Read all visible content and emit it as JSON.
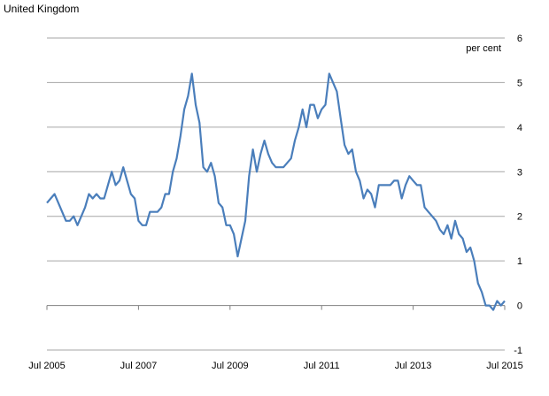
{
  "region_label": "United Kingdom",
  "chart_data": {
    "type": "line",
    "title": "",
    "xlabel": "",
    "ylabel": "",
    "unit_label": "per cent",
    "ylim": [
      -1,
      6
    ],
    "yticks": [
      "6",
      "5",
      "4",
      "3",
      "2",
      "1",
      "0",
      "-1"
    ],
    "xlim": [
      "2005-07",
      "2015-07"
    ],
    "xticks": [
      "Jul 2005",
      "Jul 2007",
      "Jul 2009",
      "Jul 2011",
      "Jul 2013",
      "Jul 2015"
    ],
    "grid": true,
    "legend": "none",
    "series": [
      {
        "color": "#4A7EBB",
        "x": [
          "2005-07",
          "2005-08",
          "2005-09",
          "2005-10",
          "2005-11",
          "2005-12",
          "2006-01",
          "2006-02",
          "2006-03",
          "2006-04",
          "2006-05",
          "2006-06",
          "2006-07",
          "2006-08",
          "2006-09",
          "2006-10",
          "2006-11",
          "2006-12",
          "2007-01",
          "2007-02",
          "2007-03",
          "2007-04",
          "2007-05",
          "2007-06",
          "2007-07",
          "2007-08",
          "2007-09",
          "2007-10",
          "2007-11",
          "2007-12",
          "2008-01",
          "2008-02",
          "2008-03",
          "2008-04",
          "2008-05",
          "2008-06",
          "2008-07",
          "2008-08",
          "2008-09",
          "2008-10",
          "2008-11",
          "2008-12",
          "2009-01",
          "2009-02",
          "2009-03",
          "2009-04",
          "2009-05",
          "2009-06",
          "2009-07",
          "2009-08",
          "2009-09",
          "2009-10",
          "2009-11",
          "2009-12",
          "2010-01",
          "2010-02",
          "2010-03",
          "2010-04",
          "2010-05",
          "2010-06",
          "2010-07",
          "2010-08",
          "2010-09",
          "2010-10",
          "2010-11",
          "2010-12",
          "2011-01",
          "2011-02",
          "2011-03",
          "2011-04",
          "2011-05",
          "2011-06",
          "2011-07",
          "2011-08",
          "2011-09",
          "2011-10",
          "2011-11",
          "2011-12",
          "2012-01",
          "2012-02",
          "2012-03",
          "2012-04",
          "2012-05",
          "2012-06",
          "2012-07",
          "2012-08",
          "2012-09",
          "2012-10",
          "2012-11",
          "2012-12",
          "2013-01",
          "2013-02",
          "2013-03",
          "2013-04",
          "2013-05",
          "2013-06",
          "2013-07",
          "2013-08",
          "2013-09",
          "2013-10",
          "2013-11",
          "2013-12",
          "2014-01",
          "2014-02",
          "2014-03",
          "2014-04",
          "2014-05",
          "2014-06",
          "2014-07",
          "2014-08",
          "2014-09",
          "2014-10",
          "2014-11",
          "2014-12",
          "2015-01",
          "2015-02",
          "2015-03",
          "2015-04",
          "2015-05",
          "2015-06",
          "2015-07"
        ],
        "values": [
          2.3,
          2.4,
          2.5,
          2.3,
          2.1,
          1.9,
          1.9,
          2.0,
          1.8,
          2.0,
          2.2,
          2.5,
          2.4,
          2.5,
          2.4,
          2.4,
          2.7,
          3.0,
          2.7,
          2.8,
          3.1,
          2.8,
          2.5,
          2.4,
          1.9,
          1.8,
          1.8,
          2.1,
          2.1,
          2.1,
          2.2,
          2.5,
          2.5,
          3.0,
          3.3,
          3.8,
          4.4,
          4.7,
          5.2,
          4.5,
          4.1,
          3.1,
          3.0,
          3.2,
          2.9,
          2.3,
          2.2,
          1.8,
          1.8,
          1.6,
          1.1,
          1.5,
          1.9,
          2.9,
          3.5,
          3.0,
          3.4,
          3.7,
          3.4,
          3.2,
          3.1,
          3.1,
          3.1,
          3.2,
          3.3,
          3.7,
          4.0,
          4.4,
          4.0,
          4.5,
          4.5,
          4.2,
          4.4,
          4.5,
          5.2,
          5.0,
          4.8,
          4.2,
          3.6,
          3.4,
          3.5,
          3.0,
          2.8,
          2.4,
          2.6,
          2.5,
          2.2,
          2.7,
          2.7,
          2.7,
          2.7,
          2.8,
          2.8,
          2.4,
          2.7,
          2.9,
          2.8,
          2.7,
          2.7,
          2.2,
          2.1,
          2.0,
          1.9,
          1.7,
          1.6,
          1.8,
          1.5,
          1.9,
          1.6,
          1.5,
          1.2,
          1.3,
          1.0,
          0.5,
          0.3,
          0.0,
          0.0,
          -0.1,
          0.1,
          0.0,
          0.1
        ]
      }
    ]
  }
}
